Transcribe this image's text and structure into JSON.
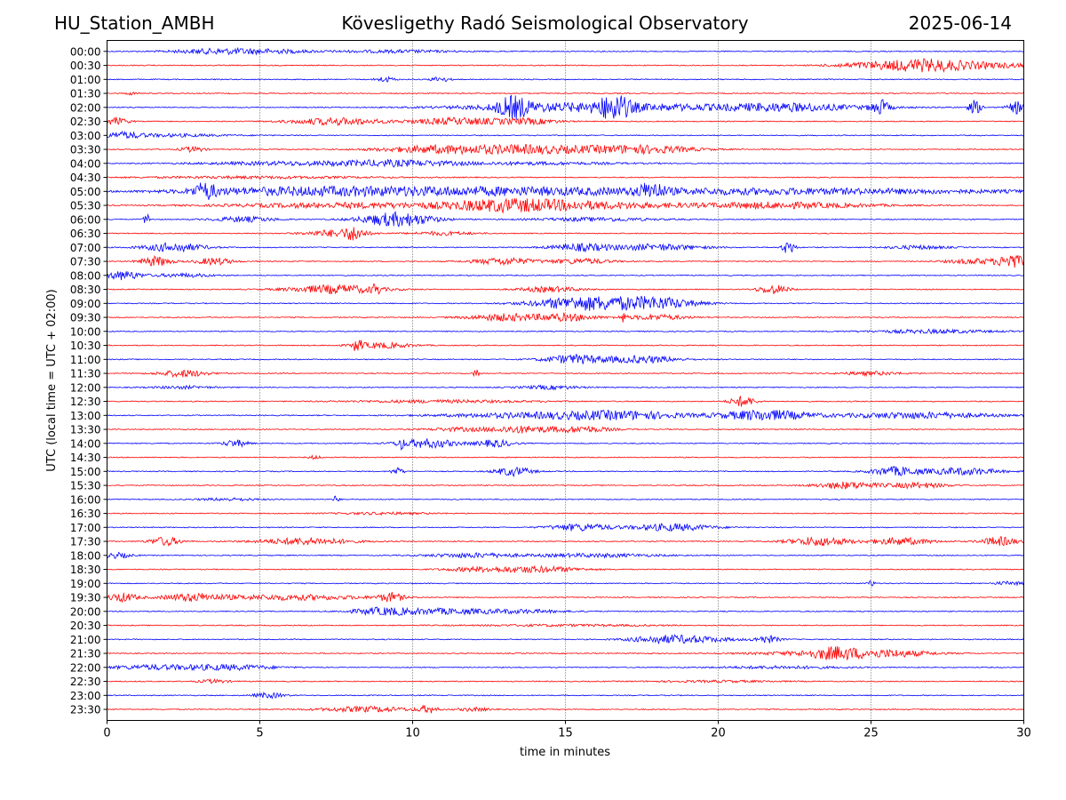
{
  "header": {
    "station": "HU_Station_AMBH",
    "title": "Kövesligethy Radó Seismological Observatory",
    "date": "2025-06-14"
  },
  "chart_data": {
    "type": "line",
    "title": "Kövesligethy Radó Seismological Observatory",
    "xlabel": "time in minutes",
    "ylabel": "UTC (local time = UTC + 02:00)",
    "xlim": [
      0,
      30
    ],
    "xticks": [
      0,
      5,
      10,
      15,
      20,
      25,
      30
    ],
    "vertical_gridlines": [
      5,
      10,
      15,
      20,
      25
    ],
    "trace_colors": [
      "#0000ff",
      "#ff0000"
    ],
    "rows": [
      {
        "label": "00:00",
        "bursts": [
          [
            3.5,
            1.5,
            2.5
          ],
          [
            5.3,
            1.5,
            2
          ],
          [
            9.5,
            2,
            1.5
          ]
        ]
      },
      {
        "label": "00:30",
        "bursts": [
          [
            26.5,
            1.5,
            6
          ],
          [
            28.5,
            2,
            3
          ],
          [
            24.5,
            1,
            2
          ]
        ]
      },
      {
        "label": "01:00",
        "bursts": [
          [
            9.1,
            0.3,
            3
          ],
          [
            10.9,
            0.3,
            3
          ]
        ]
      },
      {
        "label": "01:30",
        "bursts": [
          [
            0.8,
            0.2,
            1.5
          ]
        ]
      },
      {
        "label": "02:00",
        "bursts": [
          [
            13.3,
            0.5,
            10
          ],
          [
            16.6,
            0.5,
            12
          ],
          [
            25.3,
            0.3,
            8
          ],
          [
            28.4,
            0.2,
            8
          ],
          [
            29.8,
            0.3,
            7
          ],
          [
            14.5,
            3,
            3.5
          ],
          [
            19,
            5,
            3
          ],
          [
            22.5,
            2,
            3
          ]
        ]
      },
      {
        "label": "02:30",
        "bursts": [
          [
            0.3,
            0.4,
            4
          ],
          [
            7.5,
            1.5,
            4
          ],
          [
            11.5,
            1.5,
            4
          ],
          [
            13.8,
            1,
            3
          ]
        ]
      },
      {
        "label": "03:00",
        "bursts": [
          [
            0.5,
            0.6,
            3
          ],
          [
            2,
            2,
            1.5
          ]
        ]
      },
      {
        "label": "03:30",
        "bursts": [
          [
            2.8,
            0.4,
            3
          ],
          [
            11,
            2,
            4.5
          ],
          [
            13.5,
            1.5,
            3.5
          ],
          [
            16,
            2,
            3.5
          ],
          [
            18,
            1.5,
            3
          ]
        ]
      },
      {
        "label": "04:00",
        "bursts": [
          [
            9.5,
            2,
            3
          ],
          [
            6,
            3,
            2
          ],
          [
            14,
            3,
            1.5
          ]
        ]
      },
      {
        "label": "04:30",
        "bursts": [
          [
            5,
            4,
            1.2
          ]
        ]
      },
      {
        "label": "05:00",
        "bursts": [
          [
            3.2,
            0.4,
            8
          ],
          [
            17.8,
            0.4,
            8
          ],
          [
            6,
            4,
            4
          ],
          [
            12,
            5,
            4
          ],
          [
            22,
            8,
            3.5
          ]
        ]
      },
      {
        "label": "05:30",
        "bursts": [
          [
            13,
            2,
            5
          ],
          [
            15.5,
            3,
            4
          ],
          [
            22,
            3,
            3.5
          ],
          [
            8,
            4,
            3
          ]
        ]
      },
      {
        "label": "06:00",
        "bursts": [
          [
            9.5,
            1.2,
            8
          ],
          [
            1.3,
            0.1,
            7
          ],
          [
            4.5,
            1,
            3
          ],
          [
            16,
            2,
            2
          ]
        ]
      },
      {
        "label": "06:30",
        "bursts": [
          [
            8.1,
            0.3,
            6
          ],
          [
            7.5,
            1,
            4
          ],
          [
            11,
            1,
            2
          ]
        ]
      },
      {
        "label": "07:00",
        "bursts": [
          [
            2.2,
            1,
            5
          ],
          [
            15.5,
            1,
            4
          ],
          [
            18,
            1.5,
            3.5
          ],
          [
            22.3,
            0.2,
            8
          ],
          [
            26.5,
            1,
            2
          ]
        ]
      },
      {
        "label": "07:30",
        "bursts": [
          [
            1.6,
            0.5,
            5.5
          ],
          [
            3.5,
            0.6,
            4
          ],
          [
            13,
            1,
            4
          ],
          [
            15.5,
            1,
            3
          ],
          [
            29.6,
            0.4,
            8
          ],
          [
            28.5,
            1,
            3
          ]
        ]
      },
      {
        "label": "08:00",
        "bursts": [
          [
            0.5,
            0.6,
            5
          ],
          [
            2.5,
            1,
            2
          ]
        ]
      },
      {
        "label": "08:30",
        "bursts": [
          [
            7.5,
            1.5,
            5
          ],
          [
            8.8,
            0.1,
            8
          ],
          [
            14.5,
            1,
            3
          ],
          [
            21.8,
            0.5,
            5
          ]
        ]
      },
      {
        "label": "09:00",
        "bursts": [
          [
            15.5,
            1.5,
            5
          ],
          [
            18,
            1.3,
            6
          ],
          [
            16,
            2,
            3
          ]
        ]
      },
      {
        "label": "09:30",
        "bursts": [
          [
            13,
            1.2,
            4
          ],
          [
            15,
            1,
            4
          ],
          [
            16.9,
            0.1,
            5
          ],
          [
            18,
            1,
            3
          ]
        ]
      },
      {
        "label": "10:00",
        "bursts": [
          [
            27,
            2,
            2
          ]
        ]
      },
      {
        "label": "10:30",
        "bursts": [
          [
            8.2,
            0.15,
            7
          ],
          [
            9,
            1,
            3
          ]
        ]
      },
      {
        "label": "11:00",
        "bursts": [
          [
            15.3,
            1,
            5
          ],
          [
            17.5,
            1.2,
            4
          ]
        ]
      },
      {
        "label": "11:30",
        "bursts": [
          [
            2.5,
            0.8,
            4
          ],
          [
            12.1,
            0.1,
            6
          ],
          [
            25,
            1,
            2
          ]
        ]
      },
      {
        "label": "12:00",
        "bursts": [
          [
            14.5,
            1,
            2
          ],
          [
            2.5,
            1,
            1.5
          ]
        ]
      },
      {
        "label": "12:30",
        "bursts": [
          [
            20.8,
            0.4,
            6
          ],
          [
            11,
            3,
            1.5
          ]
        ]
      },
      {
        "label": "13:00",
        "bursts": [
          [
            21.5,
            1.5,
            6
          ],
          [
            17,
            2,
            4
          ],
          [
            26.5,
            2.5,
            3.5
          ],
          [
            14,
            3,
            3
          ]
        ]
      },
      {
        "label": "13:30",
        "bursts": [
          [
            13.5,
            1,
            4
          ],
          [
            15.5,
            1,
            3.5
          ],
          [
            11.5,
            1,
            2
          ]
        ]
      },
      {
        "label": "14:00",
        "bursts": [
          [
            4.2,
            0.4,
            4
          ],
          [
            10.5,
            1,
            5
          ],
          [
            9.6,
            0.1,
            6
          ],
          [
            12.7,
            0.6,
            4
          ]
        ]
      },
      {
        "label": "14:30",
        "bursts": [
          [
            6.8,
            0.2,
            2
          ]
        ]
      },
      {
        "label": "15:00",
        "bursts": [
          [
            13.3,
            0.6,
            5
          ],
          [
            25.8,
            0.8,
            5
          ],
          [
            28,
            1.2,
            4
          ],
          [
            9.5,
            0.2,
            4
          ]
        ]
      },
      {
        "label": "15:30",
        "bursts": [
          [
            24.2,
            1,
            4
          ],
          [
            26.5,
            1,
            3
          ]
        ]
      },
      {
        "label": "16:00",
        "bursts": [
          [
            7.5,
            0.1,
            4
          ],
          [
            4,
            1,
            1.5
          ]
        ]
      },
      {
        "label": "16:30",
        "bursts": [
          [
            9,
            1.5,
            1.2
          ]
        ]
      },
      {
        "label": "17:00",
        "bursts": [
          [
            15.5,
            1,
            4
          ],
          [
            18.5,
            1.3,
            4
          ]
        ]
      },
      {
        "label": "17:30",
        "bursts": [
          [
            1.9,
            0.5,
            5
          ],
          [
            6.5,
            1.5,
            4
          ],
          [
            23.3,
            1,
            5
          ],
          [
            26,
            1,
            4
          ],
          [
            29.2,
            0.6,
            5
          ]
        ]
      },
      {
        "label": "18:00",
        "bursts": [
          [
            0.3,
            0.5,
            3
          ],
          [
            12,
            1.5,
            2.5
          ],
          [
            16,
            2,
            2
          ]
        ]
      },
      {
        "label": "18:30",
        "bursts": [
          [
            14,
            1.5,
            3.5
          ],
          [
            12,
            1,
            2
          ]
        ]
      },
      {
        "label": "19:00",
        "bursts": [
          [
            25,
            0.1,
            4
          ],
          [
            29.5,
            0.5,
            2
          ]
        ]
      },
      {
        "label": "19:30",
        "bursts": [
          [
            0.5,
            0.5,
            5
          ],
          [
            2.8,
            1,
            4
          ],
          [
            6,
            2.5,
            3
          ],
          [
            9.3,
            0.4,
            5
          ]
        ]
      },
      {
        "label": "20:00",
        "bursts": [
          [
            9,
            1,
            4
          ],
          [
            11,
            1.5,
            3
          ],
          [
            13.5,
            1.5,
            2
          ]
        ]
      },
      {
        "label": "20:30",
        "bursts": [
          [
            15,
            3,
            1
          ]
        ]
      },
      {
        "label": "21:00",
        "bursts": [
          [
            19,
            1.5,
            3.5
          ],
          [
            21.6,
            0.4,
            4
          ],
          [
            18,
            1,
            2
          ]
        ]
      },
      {
        "label": "21:30",
        "bursts": [
          [
            23.8,
            0.8,
            5
          ],
          [
            25.5,
            1.5,
            4
          ],
          [
            23,
            2,
            2
          ]
        ]
      },
      {
        "label": "22:00",
        "bursts": [
          [
            4,
            1.5,
            3
          ],
          [
            1.5,
            1.5,
            2.5
          ],
          [
            22,
            2,
            1.5
          ]
        ]
      },
      {
        "label": "22:30",
        "bursts": [
          [
            3.5,
            0.5,
            2
          ],
          [
            20,
            2,
            1
          ]
        ]
      },
      {
        "label": "23:00",
        "bursts": [
          [
            5.3,
            0.5,
            3
          ]
        ]
      },
      {
        "label": "23:30",
        "bursts": [
          [
            8.5,
            1.5,
            3
          ],
          [
            10.5,
            0.3,
            4
          ],
          [
            12,
            0.5,
            2
          ]
        ]
      }
    ]
  }
}
